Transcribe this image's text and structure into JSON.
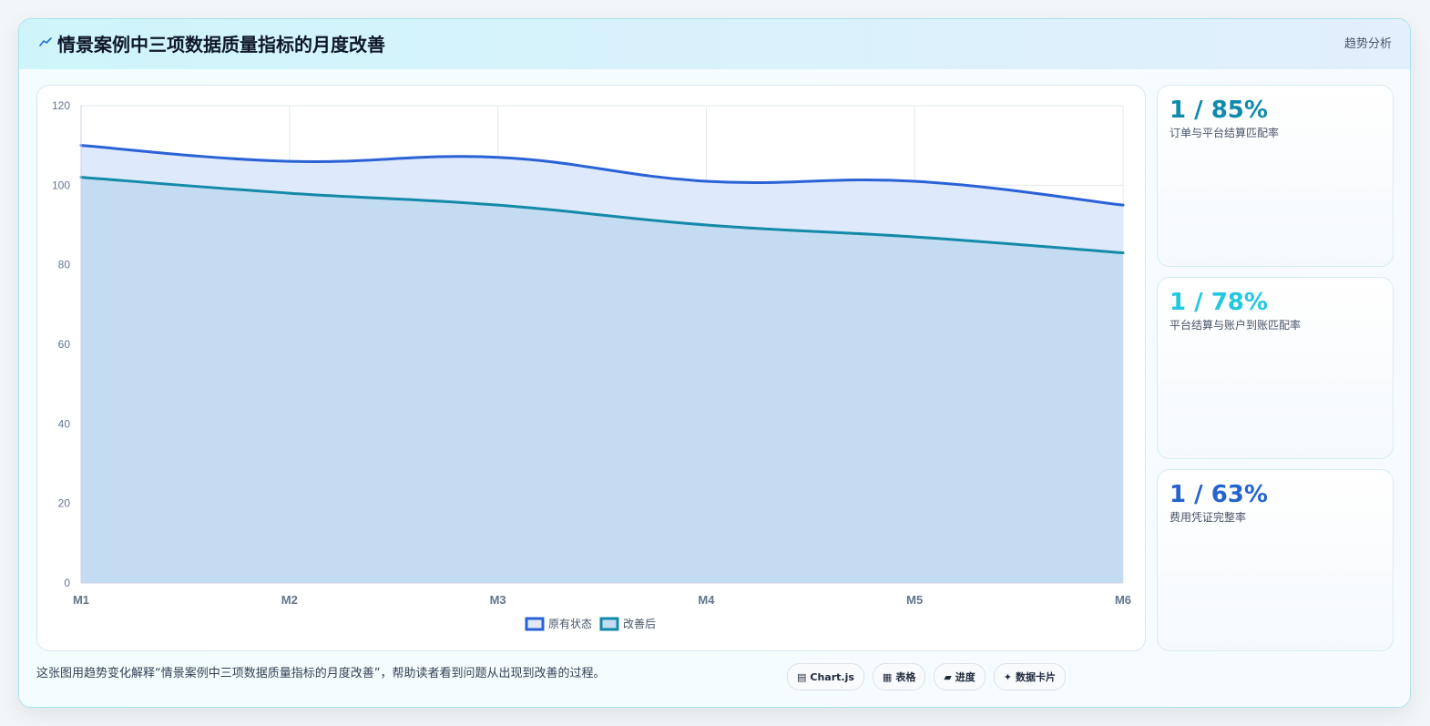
{
  "header": {
    "title": "情景案例中三项数据质量指标的月度改善",
    "tag": "趋势分析",
    "icon": "trend-icon"
  },
  "chart_data": {
    "type": "area",
    "x": [
      "M1",
      "M2",
      "M3",
      "M4",
      "M5",
      "M6"
    ],
    "ylim": [
      0,
      120
    ],
    "yticks": [
      0,
      20,
      40,
      60,
      80,
      100,
      120
    ],
    "grid": true,
    "legend_position": "bottom-center",
    "series": [
      {
        "name": "原有状态",
        "values": [
          110,
          106,
          107,
          101,
          101,
          95
        ],
        "color": "#2a62d6",
        "fill": "#dee9fb"
      },
      {
        "name": "改善后",
        "values": [
          102,
          98,
          95,
          90,
          87,
          83
        ],
        "color": "#138aa8",
        "fill": "#c4dcf2"
      }
    ]
  },
  "stats": [
    {
      "value": "1 / 85%",
      "label": "订单与平台结算匹配率",
      "color": "#0e8aaa"
    },
    {
      "value": "1 / 78%",
      "label": "平台结算与账户到账匹配率",
      "color": "#22c8e0"
    },
    {
      "value": "1 / 63%",
      "label": "费用凭证完整率",
      "color": "#2563cf"
    }
  ],
  "caption": "这张图用趋势变化解释“情景案例中三项数据质量指标的月度改善”，帮助读者看到问题从出现到改善的过程。",
  "pills": [
    {
      "icon": "▤",
      "label": "Chart.js"
    },
    {
      "icon": "▦",
      "label": "表格"
    },
    {
      "icon": "▰",
      "label": "进度"
    },
    {
      "icon": "✦",
      "label": "数据卡片"
    }
  ]
}
